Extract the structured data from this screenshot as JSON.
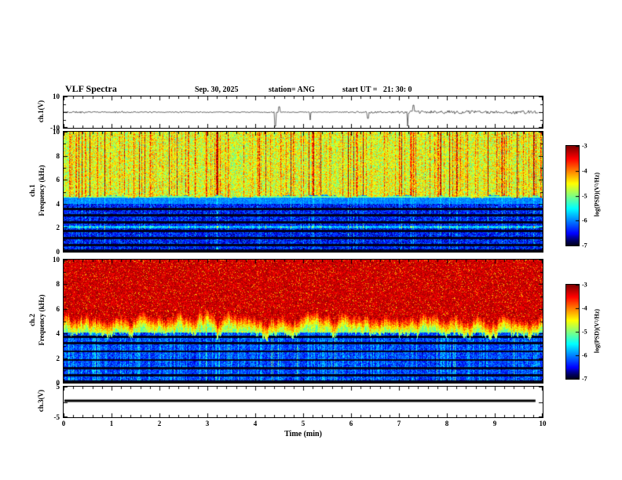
{
  "header": {
    "title": "VLF Spectra",
    "date": "Sep. 30, 2025",
    "station": "station= ANG",
    "start_ut": "start UT =   21: 30: 0"
  },
  "xaxis": {
    "label": "Time (min)",
    "xlim": [
      0,
      10
    ],
    "ticks": [
      0,
      1,
      2,
      3,
      4,
      5,
      6,
      7,
      8,
      9,
      10
    ],
    "minor_step": 0.2
  },
  "colorbar": {
    "label": "log(PSD)(V²/Hz)",
    "zlim": [
      -7,
      -3
    ],
    "ticks": [
      -3,
      -4,
      -5,
      -6,
      -7
    ]
  },
  "chart_data": [
    {
      "id": "ch1_wave",
      "type": "line",
      "panel": "wave1",
      "ylabel": "ch.1(V)",
      "xlim": [
        0,
        10
      ],
      "ylim": [
        -10,
        10
      ],
      "yticks": [
        10,
        -10
      ],
      "yticks_marks": [
        0
      ],
      "yticks_minor": [
        5,
        -5
      ],
      "seed": 11,
      "noise_amplitude": 0.55,
      "data_end_min": 9.93,
      "spikes": [
        {
          "t": 4.42,
          "v": -9
        },
        {
          "t": 4.5,
          "v": 3.5
        },
        {
          "t": 5.15,
          "v": -5
        },
        {
          "t": 6.35,
          "v": -4
        },
        {
          "t": 7.18,
          "v": -9
        },
        {
          "t": 7.3,
          "v": 4.5
        }
      ],
      "description": "broadband noise around 0 V with occasional impulsive spikes"
    },
    {
      "id": "ch1_spec",
      "type": "heatmap",
      "panel": "spec1",
      "ylabel_channel": "ch.1",
      "ylabel_freq": "Frequency (kHz)",
      "xlim": [
        0,
        10
      ],
      "ylim": [
        0,
        10
      ],
      "zlim": [
        -7,
        -3
      ],
      "yticks": [
        0,
        2,
        4,
        6,
        8,
        10
      ],
      "yticks_marks": [
        2,
        4,
        6,
        8
      ],
      "yticks_minor": [
        1,
        3,
        5,
        7,
        9
      ],
      "seed": 21,
      "streaks": {
        "red_prob": 0.045,
        "yellow_prob": 0.22
      },
      "bands": {
        "upper_start_khz": 4.6,
        "upper_base": -4.75,
        "mid_range_khz": [
          4.0,
          4.6
        ],
        "mid_base": -6.0,
        "cyan_line_khz": 4.55,
        "lower_base": -6.45,
        "green_band_khz": 2.05,
        "dark_bands_khz": [
          0.12,
          0.55,
          1.15,
          1.75,
          2.45,
          3.05,
          3.55
        ]
      },
      "description": "impulsive broadband activity above ~4.6 kHz (green/yellow with red vertical bursts); quieter blue background with dark horizontal bands below 4 kHz"
    },
    {
      "id": "ch2_spec",
      "type": "heatmap",
      "panel": "spec2",
      "ylabel_channel": "ch.2",
      "ylabel_freq": "Frequency (kHz)",
      "xlim": [
        0,
        10
      ],
      "ylim": [
        0,
        10
      ],
      "zlim": [
        -7,
        -3
      ],
      "yticks": [
        0,
        2,
        4,
        6,
        8,
        10
      ],
      "yticks_marks": [
        2,
        4,
        6,
        8
      ],
      "yticks_minor": [
        1,
        3,
        5,
        7,
        9
      ],
      "seed": 42,
      "streaks": {
        "red_prob": 0.05,
        "yellow_prob": 0.3
      },
      "bands": {
        "red_base": -3.3,
        "red_boundary_khz": 5.3,
        "transition_khz": 1.3,
        "green_base": -5.1,
        "blue_top_khz": 4.05,
        "lower_base": -6.35,
        "dark_bands_khz": [
          0.12,
          0.6,
          1.2,
          1.85,
          2.55,
          3.2,
          3.7
        ]
      },
      "description": "intense broadband emission above ~5 kHz (red/orange), yellow-green transition near 4-5 kHz, blue background with dark bands and green vertical streaks below 4 kHz"
    },
    {
      "id": "ch3_wave",
      "type": "line",
      "panel": "wave3",
      "ylabel": "ch.3(V)",
      "xlim": [
        0,
        10
      ],
      "ylim": [
        -5,
        5
      ],
      "yticks": [
        5,
        -5
      ],
      "yticks_marks": [
        0
      ],
      "yticks_minor": [],
      "flat_value": 0.4,
      "line_width": 3,
      "data_end_min": 9.85,
      "description": "constant ~0.4 V flat trace"
    }
  ]
}
